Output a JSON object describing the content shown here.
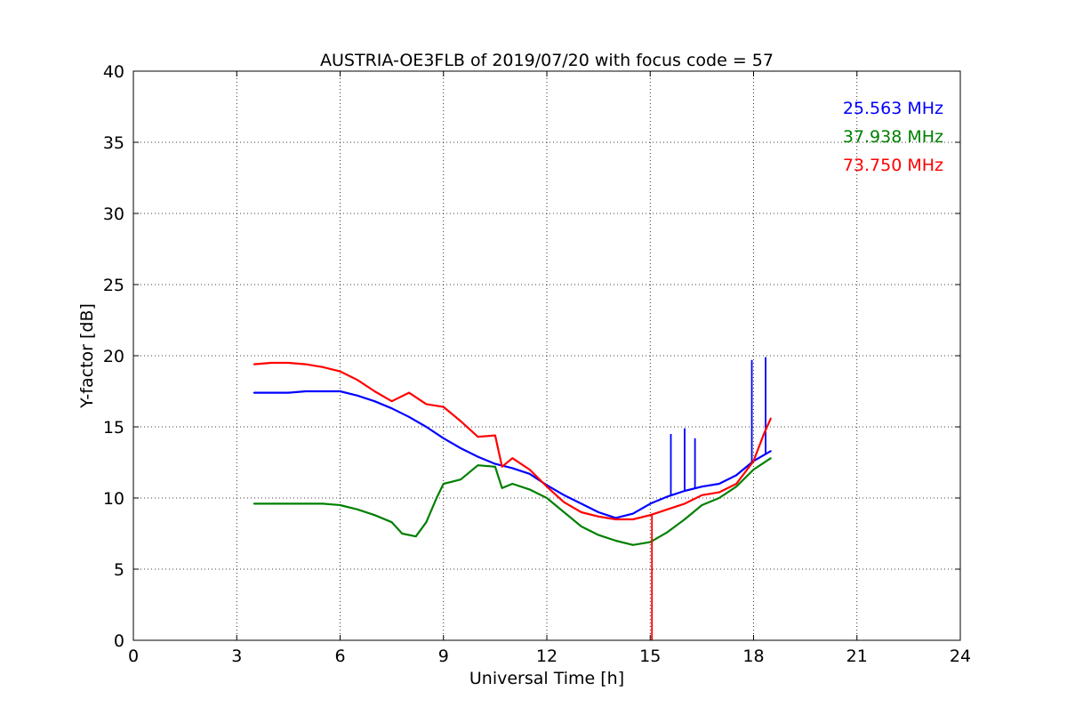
{
  "chart_data": {
    "type": "line",
    "title": "AUSTRIA-OE3FLB of 2019/07/20 with focus code = 57",
    "xlabel": "Universal Time [h]",
    "ylabel": "Y-factor [dB]",
    "xlim": [
      0,
      24
    ],
    "ylim": [
      0,
      40
    ],
    "xticks": [
      0,
      3,
      6,
      9,
      12,
      15,
      18,
      21,
      24
    ],
    "yticks": [
      0,
      5,
      10,
      15,
      20,
      25,
      30,
      35,
      40
    ],
    "grid": true,
    "legend_position": "top-right",
    "series": [
      {
        "name": "25.563 MHz",
        "color": "#0000ff",
        "x": [
          3.5,
          4.0,
          4.5,
          5.0,
          5.5,
          6.0,
          6.5,
          7.0,
          7.5,
          8.0,
          8.5,
          9.0,
          9.5,
          10.0,
          10.5,
          11.0,
          11.5,
          12.0,
          12.5,
          13.0,
          13.5,
          14.0,
          14.5,
          15.0,
          15.5,
          16.0,
          16.5,
          17.0,
          17.5,
          18.0,
          18.5
        ],
        "values": [
          17.4,
          17.4,
          17.4,
          17.5,
          17.5,
          17.5,
          17.2,
          16.8,
          16.3,
          15.7,
          15.0,
          14.2,
          13.5,
          12.9,
          12.4,
          12.1,
          11.7,
          10.9,
          10.2,
          9.6,
          9.0,
          8.6,
          8.9,
          9.6,
          10.1,
          10.5,
          10.8,
          11.0,
          11.6,
          12.6,
          13.3
        ],
        "spikes": [
          {
            "x": 15.6,
            "y": 14.5
          },
          {
            "x": 16.0,
            "y": 14.9
          },
          {
            "x": 16.3,
            "y": 14.2
          },
          {
            "x": 17.95,
            "y": 19.7
          },
          {
            "x": 18.35,
            "y": 19.9
          }
        ]
      },
      {
        "name": "37.938 MHz",
        "color": "#008000",
        "x": [
          3.5,
          4.0,
          4.5,
          5.0,
          5.5,
          6.0,
          6.5,
          7.0,
          7.5,
          7.8,
          8.2,
          8.5,
          8.8,
          9.0,
          9.5,
          10.0,
          10.5,
          10.7,
          11.0,
          11.5,
          12.0,
          12.5,
          13.0,
          13.5,
          14.0,
          14.5,
          15.0,
          15.5,
          16.0,
          16.5,
          17.0,
          17.5,
          18.0,
          18.5
        ],
        "values": [
          9.6,
          9.6,
          9.6,
          9.6,
          9.6,
          9.5,
          9.2,
          8.8,
          8.3,
          7.5,
          7.3,
          8.3,
          10.0,
          11.0,
          11.3,
          12.3,
          12.2,
          10.7,
          11.0,
          10.6,
          10.0,
          9.0,
          8.0,
          7.4,
          7.0,
          6.7,
          6.9,
          7.6,
          8.5,
          9.5,
          10.0,
          10.8,
          12.0,
          12.8
        ]
      },
      {
        "name": "73.750 MHz",
        "color": "#ff0000",
        "x": [
          3.5,
          4.0,
          4.5,
          5.0,
          5.5,
          6.0,
          6.5,
          7.0,
          7.5,
          8.0,
          8.5,
          9.0,
          9.5,
          10.0,
          10.5,
          10.7,
          11.0,
          11.5,
          12.0,
          12.5,
          13.0,
          13.5,
          14.0,
          14.5,
          15.0,
          15.5,
          16.0,
          16.5,
          17.0,
          17.5,
          18.0,
          18.3,
          18.5
        ],
        "values": [
          19.4,
          19.5,
          19.5,
          19.4,
          19.2,
          18.9,
          18.3,
          17.5,
          16.8,
          17.4,
          16.6,
          16.4,
          15.4,
          14.3,
          14.4,
          12.2,
          12.8,
          12.0,
          10.8,
          9.7,
          9.0,
          8.7,
          8.5,
          8.5,
          8.8,
          9.2,
          9.6,
          10.2,
          10.4,
          11.0,
          12.6,
          14.5,
          15.6
        ],
        "spikes": [
          {
            "x": 15.05,
            "y": 0
          }
        ]
      }
    ]
  }
}
